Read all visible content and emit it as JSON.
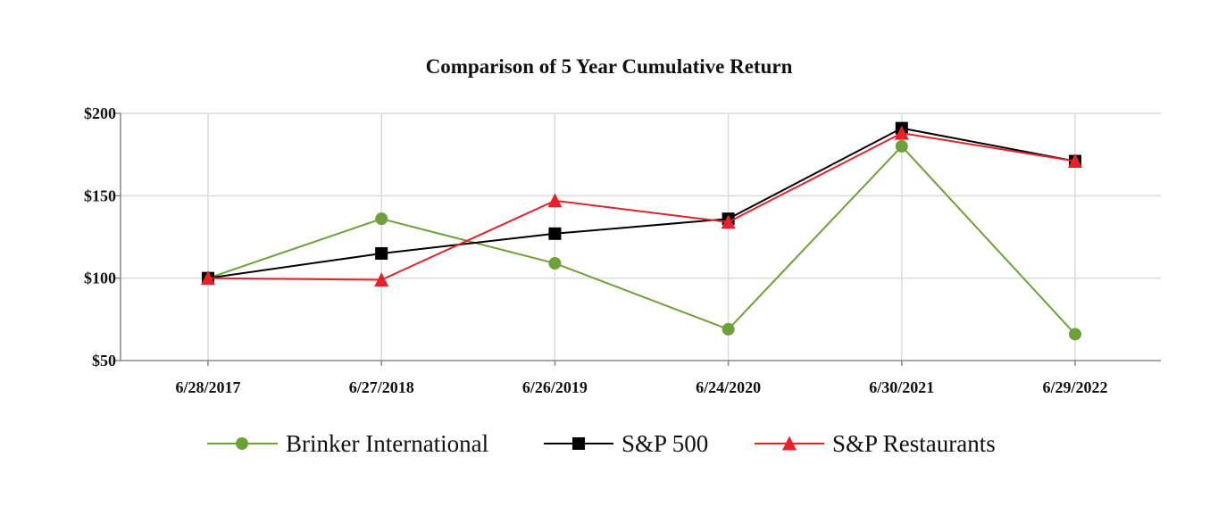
{
  "chart_data": {
    "type": "line",
    "title": "Comparison of 5 Year Cumulative Return",
    "xlabel": "",
    "ylabel": "",
    "categories": [
      "6/28/2017",
      "6/27/2018",
      "6/26/2019",
      "6/24/2020",
      "6/30/2021",
      "6/29/2022"
    ],
    "y_ticks": [
      "$50",
      "$100",
      "$150",
      "$200"
    ],
    "y_tick_values": [
      50,
      100,
      150,
      200
    ],
    "ylim": [
      50,
      200
    ],
    "grid": true,
    "legend_position": "bottom",
    "series": [
      {
        "name": "Brinker International",
        "color": "#70a03a",
        "marker": "circle",
        "values": [
          100,
          136,
          109,
          69,
          180,
          66
        ]
      },
      {
        "name": "S&P 500",
        "color": "#000000",
        "marker": "square",
        "values": [
          100,
          115,
          127,
          136,
          191,
          171
        ]
      },
      {
        "name": "S&P Restaurants",
        "color": "#e8202a",
        "marker": "triangle",
        "values": [
          100,
          99,
          147,
          134,
          188,
          171
        ]
      }
    ]
  }
}
